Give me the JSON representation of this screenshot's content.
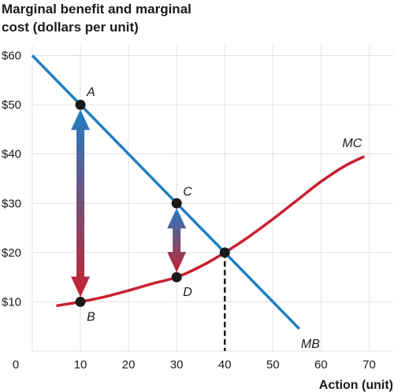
{
  "chart_data": {
    "type": "line",
    "title_lines": [
      "Marginal benefit and marginal",
      "cost (dollars per unit)"
    ],
    "xlabel": "Action (unit)",
    "x_ticks": [
      0,
      10,
      20,
      30,
      40,
      50,
      60,
      70
    ],
    "x_tick_labels": [
      "0",
      "10",
      "20",
      "30",
      "40",
      "50",
      "60",
      "70"
    ],
    "y_ticks": [
      10,
      20,
      30,
      40,
      50,
      60
    ],
    "y_tick_labels": [
      "$10",
      "$20",
      "$30",
      "$40",
      "$50",
      "$60"
    ],
    "xlim": [
      0,
      75
    ],
    "ylim": [
      0,
      62
    ],
    "grid": true,
    "series": [
      {
        "name": "MB",
        "color": "#1f7fc4",
        "x": [
          0,
          55.5
        ],
        "y": [
          60,
          4.5
        ]
      },
      {
        "name": "MC",
        "color": "#c8202f",
        "x": [
          5,
          10,
          15,
          20,
          25,
          30,
          35,
          40,
          45,
          50,
          55,
          60,
          65,
          69
        ],
        "y": [
          9.2,
          10,
          11,
          12.3,
          13.7,
          15,
          17.2,
          20,
          23.2,
          26.8,
          30.6,
          34.4,
          37.6,
          39.5
        ]
      }
    ],
    "points": [
      {
        "label": "A",
        "x": 10,
        "y": 50
      },
      {
        "label": "B",
        "x": 10,
        "y": 10
      },
      {
        "label": "C",
        "x": 30,
        "y": 30
      },
      {
        "label": "D",
        "x": 30,
        "y": 15
      },
      {
        "label": "",
        "x": 40,
        "y": 20
      }
    ],
    "arrows": [
      {
        "x": 10,
        "y_from": 10,
        "y_to": 50
      },
      {
        "x": 30,
        "y_from": 15,
        "y_to": 30
      }
    ],
    "dashed_line": {
      "x": 40,
      "y_from": 0,
      "y_to": 20
    },
    "colors": {
      "mb": "#1f7fc4",
      "mc": "#c8202f",
      "grid": "#e1e1e1",
      "point": "#1a1a1a"
    }
  }
}
